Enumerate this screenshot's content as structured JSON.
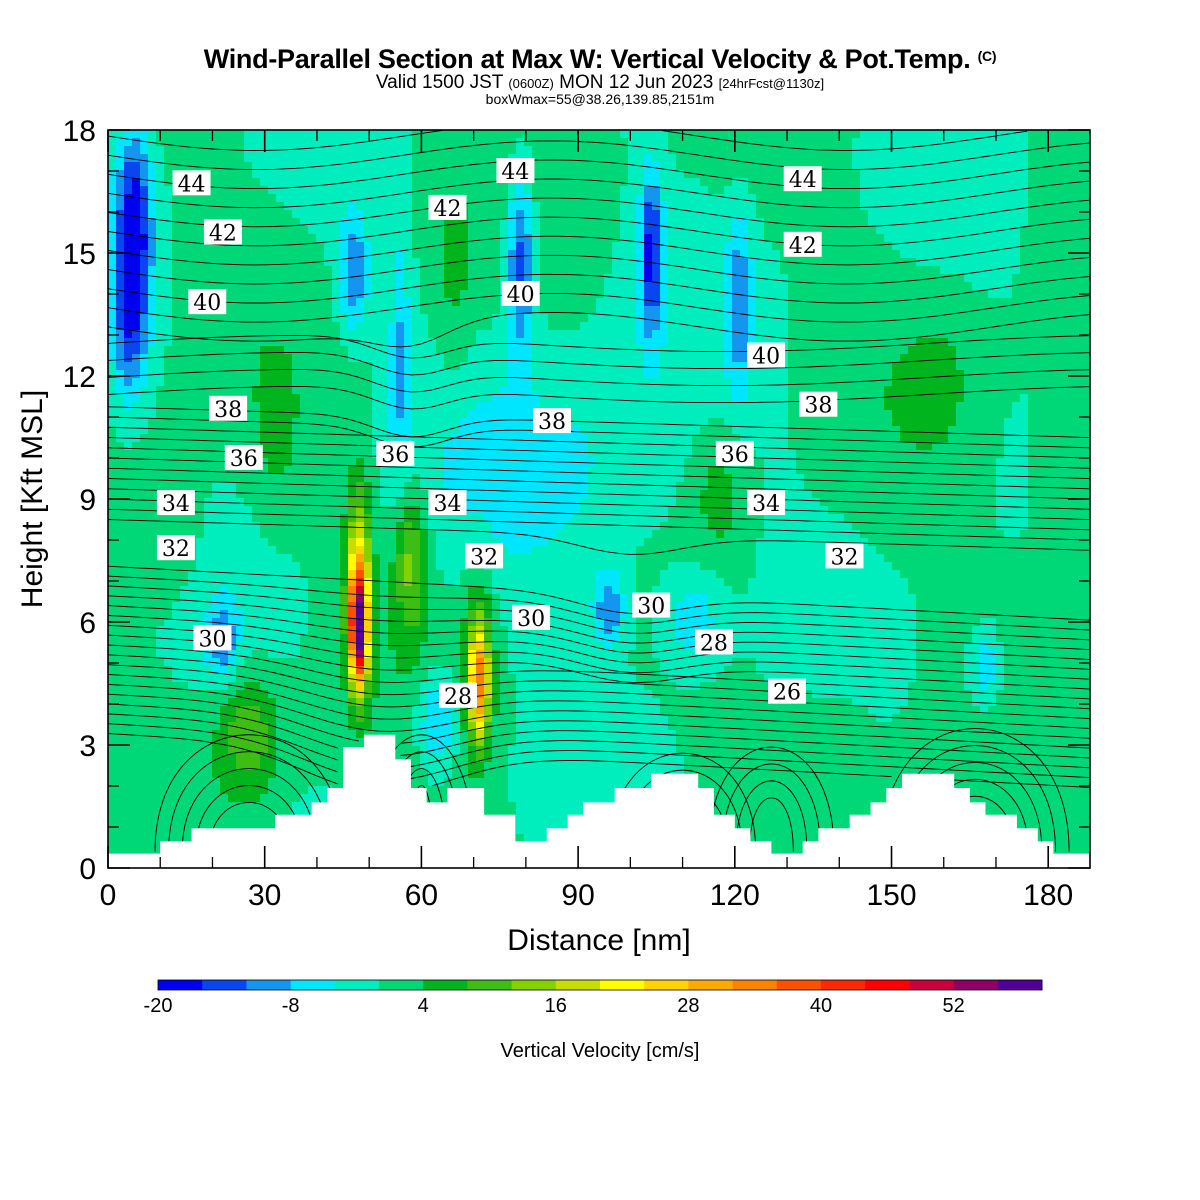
{
  "header": {
    "title": "Wind-Parallel Section at Max W: Vertical Velocity & Pot.Temp.",
    "title_unit": "(C)",
    "valid_prefix": "Valid 1500 JST",
    "valid_utc": "(0600Z)",
    "valid_date": "MON 12 Jun 2023",
    "forecast_info": "[24hrFcst@1130z]",
    "box_info": "boxWmax=55@38.26,139.85,2151m"
  },
  "chart_data": {
    "type": "heatmap",
    "xlabel": "Distance [nm]",
    "ylabel": "Height [Kft MSL]",
    "xlim": [
      0,
      188
    ],
    "ylim": [
      0,
      18
    ],
    "x_ticks": [
      0,
      30,
      60,
      90,
      120,
      150,
      180
    ],
    "y_ticks": [
      0,
      3,
      6,
      9,
      12,
      15,
      18
    ],
    "colorbar": {
      "label": "Vertical Velocity [cm/s]",
      "min": -20,
      "step": 4,
      "tick_labels": [
        "-20",
        "-8",
        "4",
        "16",
        "28",
        "40",
        "52"
      ],
      "colors": [
        "#0000f0",
        "#0a46f0",
        "#1496f0",
        "#00e6ff",
        "#00eebe",
        "#00d878",
        "#00b41e",
        "#3cbe14",
        "#82d200",
        "#c8dc00",
        "#ffff00",
        "#ffd200",
        "#ffaa00",
        "#ff8200",
        "#ff5000",
        "#ff2800",
        "#ff0000",
        "#c8003c",
        "#8c0064",
        "#500096"
      ]
    },
    "theta_contour_labels": [
      {
        "value": "44",
        "x": 16,
        "y": 16.7
      },
      {
        "value": "42",
        "x": 22,
        "y": 15.5
      },
      {
        "value": "40",
        "x": 19,
        "y": 13.8
      },
      {
        "value": "38",
        "x": 23,
        "y": 11.2
      },
      {
        "value": "36",
        "x": 26,
        "y": 10.0
      },
      {
        "value": "34",
        "x": 13,
        "y": 8.9
      },
      {
        "value": "32",
        "x": 13,
        "y": 7.8
      },
      {
        "value": "30",
        "x": 20,
        "y": 5.6
      },
      {
        "value": "36",
        "x": 55,
        "y": 10.1
      },
      {
        "value": "34",
        "x": 65,
        "y": 8.9
      },
      {
        "value": "32",
        "x": 72,
        "y": 7.6
      },
      {
        "value": "30",
        "x": 81,
        "y": 6.1
      },
      {
        "value": "28",
        "x": 67,
        "y": 4.2
      },
      {
        "value": "44",
        "x": 78,
        "y": 17.0
      },
      {
        "value": "42",
        "x": 65,
        "y": 16.1
      },
      {
        "value": "40",
        "x": 79,
        "y": 14.0
      },
      {
        "value": "38",
        "x": 85,
        "y": 10.9
      },
      {
        "value": "30",
        "x": 104,
        "y": 6.4
      },
      {
        "value": "28",
        "x": 116,
        "y": 5.5
      },
      {
        "value": "26",
        "x": 130,
        "y": 4.3
      },
      {
        "value": "36",
        "x": 120,
        "y": 10.1
      },
      {
        "value": "34",
        "x": 126,
        "y": 8.9
      },
      {
        "value": "40",
        "x": 126,
        "y": 12.5
      },
      {
        "value": "38",
        "x": 136,
        "y": 11.3
      },
      {
        "value": "32",
        "x": 141,
        "y": 7.6
      },
      {
        "value": "44",
        "x": 133,
        "y": 16.8
      },
      {
        "value": "42",
        "x": 133,
        "y": 15.2
      }
    ],
    "terrain_profile": [
      [
        0,
        0.35
      ],
      [
        10,
        0.35
      ],
      [
        10,
        0.65
      ],
      [
        16,
        0.65
      ],
      [
        16,
        0.97
      ],
      [
        32,
        0.97
      ],
      [
        32,
        1.3
      ],
      [
        39,
        1.3
      ],
      [
        39,
        1.6
      ],
      [
        42,
        1.6
      ],
      [
        42,
        1.95
      ],
      [
        45,
        1.95
      ],
      [
        45,
        2.95
      ],
      [
        49,
        2.95
      ],
      [
        49,
        3.25
      ],
      [
        55,
        3.25
      ],
      [
        55,
        2.65
      ],
      [
        58,
        2.65
      ],
      [
        58,
        1.95
      ],
      [
        61,
        1.95
      ],
      [
        61,
        1.6
      ],
      [
        65,
        1.6
      ],
      [
        65,
        1.95
      ],
      [
        72,
        1.95
      ],
      [
        72,
        1.3
      ],
      [
        78,
        1.3
      ],
      [
        78,
        0.65
      ],
      [
        84,
        0.65
      ],
      [
        84,
        0.97
      ],
      [
        88,
        0.97
      ],
      [
        88,
        1.3
      ],
      [
        91,
        1.3
      ],
      [
        91,
        1.6
      ],
      [
        97,
        1.6
      ],
      [
        97,
        1.95
      ],
      [
        104,
        1.95
      ],
      [
        104,
        2.3
      ],
      [
        113,
        2.3
      ],
      [
        113,
        1.95
      ],
      [
        116,
        1.95
      ],
      [
        116,
        1.3
      ],
      [
        120,
        1.3
      ],
      [
        120,
        0.97
      ],
      [
        123,
        0.97
      ],
      [
        123,
        0.65
      ],
      [
        127,
        0.65
      ],
      [
        127,
        0.35
      ],
      [
        133,
        0.35
      ],
      [
        133,
        0.65
      ],
      [
        136,
        0.65
      ],
      [
        136,
        0.97
      ],
      [
        142,
        0.97
      ],
      [
        142,
        1.3
      ],
      [
        146,
        1.3
      ],
      [
        146,
        1.6
      ],
      [
        149,
        1.6
      ],
      [
        149,
        1.95
      ],
      [
        152,
        1.95
      ],
      [
        152,
        2.3
      ],
      [
        162,
        2.3
      ],
      [
        162,
        1.95
      ],
      [
        165,
        1.95
      ],
      [
        165,
        1.6
      ],
      [
        168,
        1.6
      ],
      [
        168,
        1.3
      ],
      [
        174,
        1.3
      ],
      [
        174,
        0.97
      ],
      [
        178,
        0.97
      ],
      [
        178,
        0.65
      ],
      [
        181,
        0.65
      ],
      [
        181,
        0.35
      ],
      [
        188,
        0.35
      ]
    ],
    "w_features": [
      {
        "x": 5,
        "y": 15.5,
        "sx": 3.5,
        "sy": 2.6,
        "w": -20
      },
      {
        "x": 4,
        "y": 12.8,
        "sx": 3,
        "sy": 1.5,
        "w": -8
      },
      {
        "x": 47,
        "y": 14.5,
        "sx": 3,
        "sy": 1.4,
        "w": -12
      },
      {
        "x": 79,
        "y": 14.8,
        "sx": 2.8,
        "sy": 2.2,
        "w": -16
      },
      {
        "x": 104,
        "y": 15.0,
        "sx": 2.2,
        "sy": 2.0,
        "w": -17
      },
      {
        "x": 121,
        "y": 13.8,
        "sx": 2.4,
        "sy": 2.2,
        "w": -10
      },
      {
        "x": 56,
        "y": 12.5,
        "sx": 2,
        "sy": 3,
        "w": -8
      },
      {
        "x": 22,
        "y": 5.5,
        "sx": 3,
        "sy": 1.0,
        "w": -10
      },
      {
        "x": 63,
        "y": 3.6,
        "sx": 4,
        "sy": 1.2,
        "w": -11
      },
      {
        "x": 96,
        "y": 6.3,
        "sx": 3,
        "sy": 0.9,
        "w": -12
      },
      {
        "x": 112,
        "y": 6.1,
        "sx": 6,
        "sy": 1.2,
        "w": -8
      },
      {
        "x": 168,
        "y": 4.8,
        "sx": 3,
        "sy": 1.0,
        "w": -9
      },
      {
        "x": 90,
        "y": 9.5,
        "sx": 25,
        "sy": 3,
        "w": -6
      },
      {
        "x": 48,
        "y": 5.8,
        "sx": 1.6,
        "sy": 1.3,
        "w": 48
      },
      {
        "x": 48,
        "y": 7.0,
        "sx": 2.4,
        "sy": 2.3,
        "w": 22
      },
      {
        "x": 71,
        "y": 4.5,
        "sx": 1.8,
        "sy": 1.3,
        "w": 24
      },
      {
        "x": 71,
        "y": 5.0,
        "sx": 3,
        "sy": 2.2,
        "w": 11
      },
      {
        "x": 58,
        "y": 7.5,
        "sx": 3.2,
        "sy": 1.8,
        "w": 13
      },
      {
        "x": 27,
        "y": 3.3,
        "sx": 6,
        "sy": 1.5,
        "w": 11
      },
      {
        "x": 117,
        "y": 9.2,
        "sx": 6,
        "sy": 1.8,
        "w": 6
      },
      {
        "x": 12,
        "y": 8.5,
        "sx": 6,
        "sy": 2.0,
        "w": 5
      },
      {
        "x": 183,
        "y": 9.0,
        "sx": 7,
        "sy": 3,
        "w": 4
      },
      {
        "x": 66,
        "y": 14,
        "sx": 4,
        "sy": 2.5,
        "w": 4
      },
      {
        "x": 140,
        "y": 4,
        "sx": 12,
        "sy": 2,
        "w": 2
      },
      {
        "x": 32,
        "y": 10,
        "sx": 5,
        "sy": 2,
        "w": 3
      },
      {
        "x": 160,
        "y": 12,
        "sx": 8,
        "sy": 2,
        "w": 3
      }
    ]
  }
}
